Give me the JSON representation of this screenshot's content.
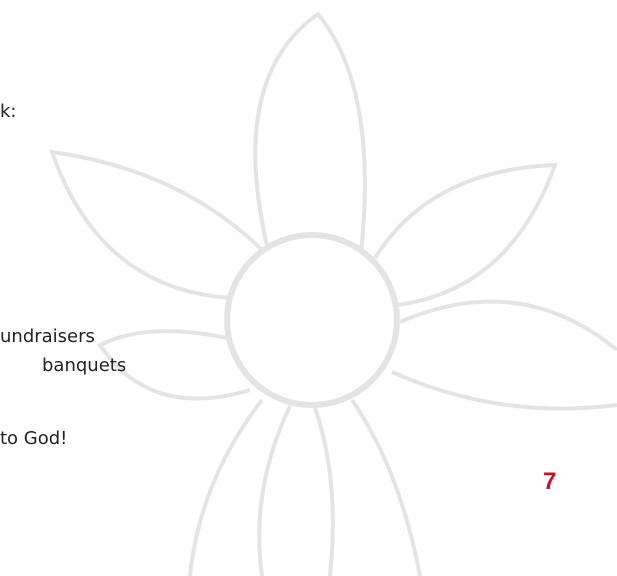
{
  "lines": [
    "k:",
    "undraisers",
    "banquets",
    "to God!"
  ],
  "page_number": 7
}
